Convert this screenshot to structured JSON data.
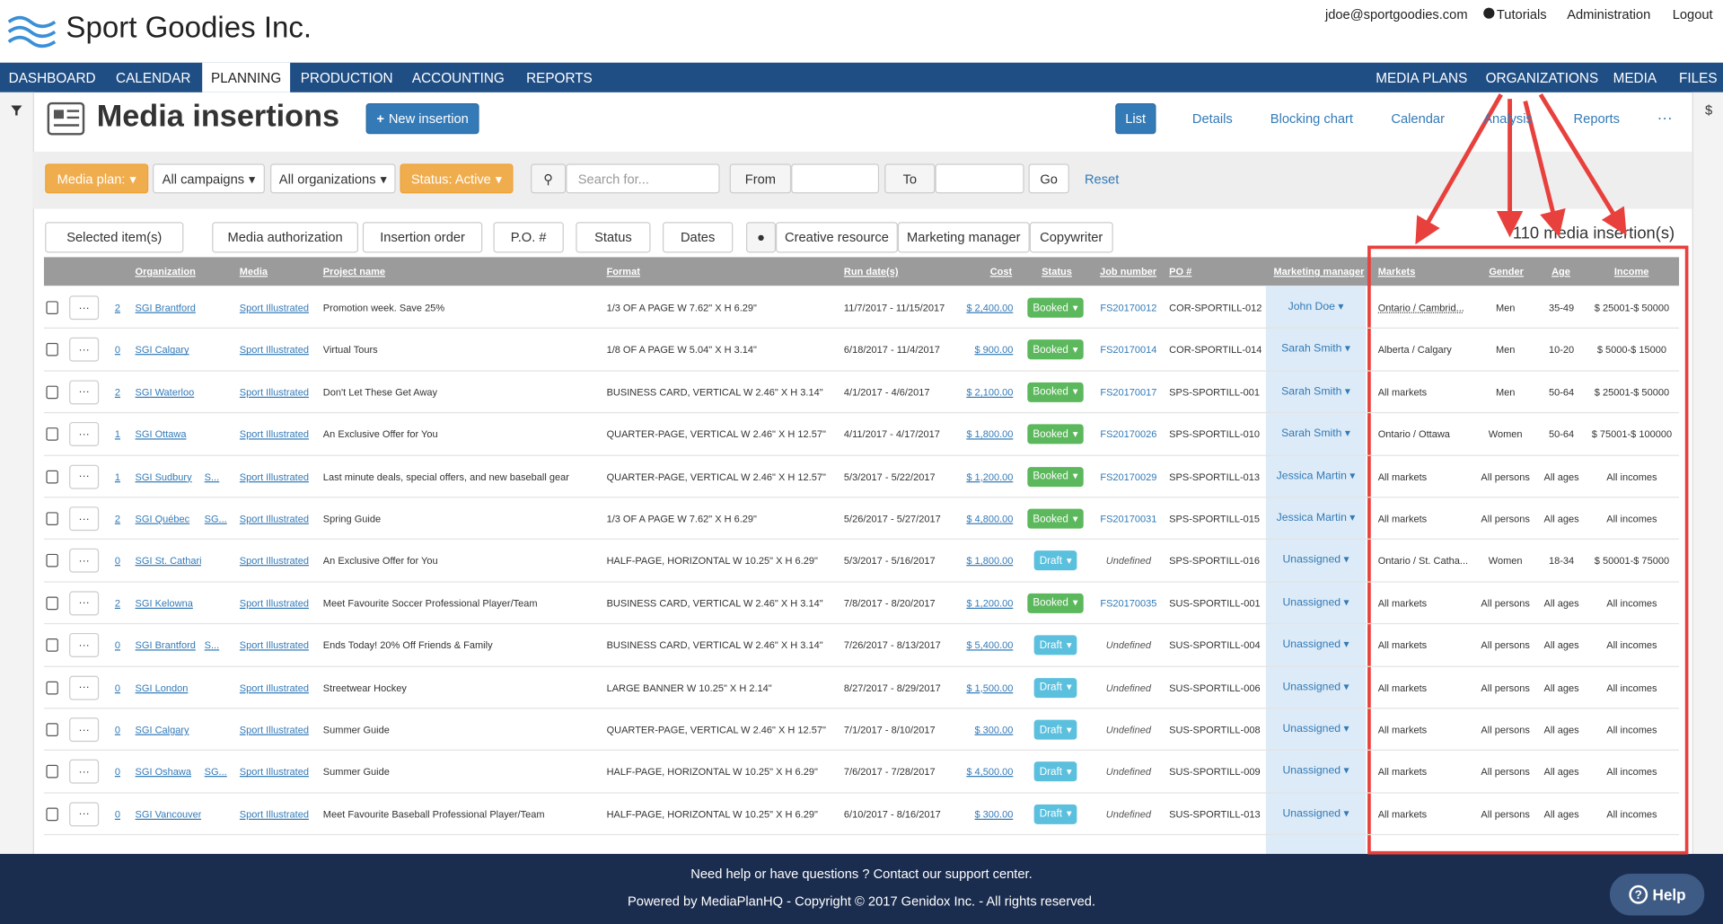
{
  "header": {
    "brand": "Sport Goodies Inc.",
    "links": [
      "jdoe@sportgoodies.com",
      "Tutorials",
      "Administration",
      "Logout"
    ]
  },
  "nav": {
    "left": [
      "DASHBOARD",
      "CALENDAR",
      "PLANNING",
      "PRODUCTION",
      "ACCOUNTING",
      "REPORTS"
    ],
    "active": 2,
    "right": [
      "MEDIA PLANS",
      "ORGANIZATIONS",
      "MEDIA",
      "FILES"
    ]
  },
  "toolbar": {
    "title": "Media insertions",
    "new_button": "New insertion",
    "views": [
      "List",
      "Details",
      "Blocking chart",
      "Calendar",
      "Analysis",
      "Reports"
    ],
    "active_view": 0
  },
  "filters": {
    "dropdowns": [
      "Media plan:",
      "All campaigns",
      "All organizations",
      "Status: Active"
    ],
    "search_placeholder": "Search for...",
    "from": "From",
    "to": "To",
    "go": "Go",
    "reset": "Reset"
  },
  "actions": {
    "buttons": [
      "Selected item(s)",
      "Media authorization",
      "Insertion order",
      "P.O. #",
      "Status",
      "Dates"
    ],
    "roles": [
      "Creative resource",
      "Marketing manager",
      "Copywriter"
    ],
    "count": "110 media insertion(s)"
  },
  "table": {
    "columns": [
      "Organization",
      "Media",
      "Project name",
      "Format",
      "Run date(s)",
      "Cost",
      "Status",
      "Job number",
      "PO #",
      "Marketing manager",
      "Markets",
      "Gender",
      "Age",
      "Income"
    ],
    "status_colors": {
      "Booked": "#5cb85c",
      "Draft": "#5bc0de"
    },
    "rows": [
      {
        "notes": 2,
        "organizations": [
          "SGI Brantford"
        ],
        "media": "Sport Illustrated",
        "project": "Promotion week. Save 25%",
        "format": "1/3 OF A PAGE W 7.62\" X H 6.29\"",
        "run_dates": "11/7/2017 - 11/15/2017",
        "cost": "$ 2,400.00",
        "status": "Booked",
        "job_number": "FS20170012",
        "po": "COR-SPORTILL-012",
        "manager": "John Doe",
        "markets": "Ontario / Cambrid...",
        "gender": "Men",
        "age": "35-49",
        "income": "$ 25001-$ 50000"
      },
      {
        "notes": 0,
        "organizations": [
          "SGI Calgary"
        ],
        "media": "Sport Illustrated",
        "project": "Virtual Tours",
        "format": "1/8 OF A PAGE W 5.04\" X H 3.14\"",
        "run_dates": "6/18/2017 - 11/4/2017",
        "cost": "$ 900.00",
        "status": "Booked",
        "job_number": "FS20170014",
        "po": "COR-SPORTILL-014",
        "manager": "Sarah Smith",
        "markets": "Alberta / Calgary",
        "gender": "Men",
        "age": "10-20",
        "income": "$ 5000-$ 15000"
      },
      {
        "notes": 2,
        "organizations": [
          "SGI Waterloo"
        ],
        "media": "Sport Illustrated",
        "project": "Don't Let These Get Away",
        "format": "BUSINESS CARD, VERTICAL W 2.46\" X H 3.14\"",
        "run_dates": "4/1/2017 - 4/6/2017",
        "cost": "$ 2,100.00",
        "status": "Booked",
        "job_number": "FS20170017",
        "po": "SPS-SPORTILL-001",
        "manager": "Sarah Smith",
        "markets": "All markets",
        "gender": "Men",
        "age": "50-64",
        "income": "$ 25001-$ 50000"
      },
      {
        "notes": 1,
        "organizations": [
          "SGI Ottawa"
        ],
        "media": "Sport Illustrated",
        "project": "An Exclusive Offer for You",
        "format": "QUARTER-PAGE, VERTICAL W 2.46\" X H 12.57\"",
        "run_dates": "4/11/2017 - 4/17/2017",
        "cost": "$ 1,800.00",
        "status": "Booked",
        "job_number": "FS20170026",
        "po": "SPS-SPORTILL-010",
        "manager": "Sarah Smith",
        "markets": "Ontario / Ottawa",
        "gender": "Women",
        "age": "50-64",
        "income": "$ 75001-$ 100000"
      },
      {
        "notes": 1,
        "organizations": [
          "SGI Sudbury",
          "S..."
        ],
        "media": "Sport Illustrated",
        "project": "Last minute deals, special offers, and new baseball gear",
        "format": "QUARTER-PAGE, VERTICAL W 2.46\" X H 12.57\"",
        "run_dates": "5/3/2017 - 5/22/2017",
        "cost": "$ 1,200.00",
        "status": "Booked",
        "job_number": "FS20170029",
        "po": "SPS-SPORTILL-013",
        "manager": "Jessica Martin",
        "markets": "All markets",
        "gender": "All persons",
        "age": "All ages",
        "income": "All incomes"
      },
      {
        "notes": 2,
        "organizations": [
          "SGI Québec",
          "SG..."
        ],
        "media": "Sport Illustrated",
        "project": "Spring Guide",
        "format": "1/3 OF A PAGE W 7.62\" X H 6.29\"",
        "run_dates": "5/26/2017 - 5/27/2017",
        "cost": "$ 4,800.00",
        "status": "Booked",
        "job_number": "FS20170031",
        "po": "SPS-SPORTILL-015",
        "manager": "Jessica Martin",
        "markets": "All markets",
        "gender": "All persons",
        "age": "All ages",
        "income": "All incomes"
      },
      {
        "notes": 0,
        "organizations": [
          "SGI St. Catharines"
        ],
        "media": "Sport Illustrated",
        "project": "An Exclusive Offer for You",
        "format": "HALF-PAGE, HORIZONTAL W 10.25\" X H 6.29\"",
        "run_dates": "5/3/2017 - 5/16/2017",
        "cost": "$ 1,800.00",
        "status": "Draft",
        "job_number": "Undefined",
        "po": "SPS-SPORTILL-016",
        "manager": "Unassigned",
        "markets": "Ontario / St. Catha...",
        "gender": "Women",
        "age": "18-34",
        "income": "$ 50001-$ 75000"
      },
      {
        "notes": 2,
        "organizations": [
          "SGI Kelowna"
        ],
        "media": "Sport Illustrated",
        "project": "Meet Favourite Soccer Professional Player/Team",
        "format": "BUSINESS CARD, VERTICAL W 2.46\" X H 3.14\"",
        "run_dates": "7/8/2017 - 8/20/2017",
        "cost": "$ 1,200.00",
        "status": "Booked",
        "job_number": "FS20170035",
        "po": "SUS-SPORTILL-001",
        "manager": "Unassigned",
        "markets": "All markets",
        "gender": "All persons",
        "age": "All ages",
        "income": "All incomes"
      },
      {
        "notes": 0,
        "organizations": [
          "SGI Brantford",
          "S..."
        ],
        "media": "Sport Illustrated",
        "project": "Ends Today! 20% Off Friends & Family",
        "format": "BUSINESS CARD, VERTICAL W 2.46\" X H 3.14\"",
        "run_dates": "7/26/2017 - 8/13/2017",
        "cost": "$ 5,400.00",
        "status": "Draft",
        "job_number": "Undefined",
        "po": "SUS-SPORTILL-004",
        "manager": "Unassigned",
        "markets": "All markets",
        "gender": "All persons",
        "age": "All ages",
        "income": "All incomes"
      },
      {
        "notes": 0,
        "organizations": [
          "SGI London"
        ],
        "media": "Sport Illustrated",
        "project": "Streetwear Hockey",
        "format": "LARGE BANNER W 10.25\" X H 2.14\"",
        "run_dates": "8/27/2017 - 8/29/2017",
        "cost": "$ 1,500.00",
        "status": "Draft",
        "job_number": "Undefined",
        "po": "SUS-SPORTILL-006",
        "manager": "Unassigned",
        "markets": "All markets",
        "gender": "All persons",
        "age": "All ages",
        "income": "All incomes"
      },
      {
        "notes": 0,
        "organizations": [
          "SGI Calgary"
        ],
        "media": "Sport Illustrated",
        "project": "Summer Guide",
        "format": "QUARTER-PAGE, VERTICAL W 2.46\" X H 12.57\"",
        "run_dates": "7/1/2017 - 8/10/2017",
        "cost": "$ 300.00",
        "status": "Draft",
        "job_number": "Undefined",
        "po": "SUS-SPORTILL-008",
        "manager": "Unassigned",
        "markets": "All markets",
        "gender": "All persons",
        "age": "All ages",
        "income": "All incomes"
      },
      {
        "notes": 0,
        "organizations": [
          "SGI Oshawa",
          "SG..."
        ],
        "media": "Sport Illustrated",
        "project": "Summer Guide",
        "format": "HALF-PAGE, HORIZONTAL W 10.25\" X H 6.29\"",
        "run_dates": "7/6/2017 - 7/28/2017",
        "cost": "$ 4,500.00",
        "status": "Draft",
        "job_number": "Undefined",
        "po": "SUS-SPORTILL-009",
        "manager": "Unassigned",
        "markets": "All markets",
        "gender": "All persons",
        "age": "All ages",
        "income": "All incomes"
      },
      {
        "notes": 0,
        "organizations": [
          "SGI Vancouver"
        ],
        "media": "Sport Illustrated",
        "project": "Meet Favourite Baseball Professional Player/Team",
        "format": "HALF-PAGE, HORIZONTAL W 10.25\" X H 6.29\"",
        "run_dates": "6/10/2017 - 8/16/2017",
        "cost": "$ 300.00",
        "status": "Draft",
        "job_number": "Undefined",
        "po": "SUS-SPORTILL-013",
        "manager": "Unassigned",
        "markets": "All markets",
        "gender": "All persons",
        "age": "All ages",
        "income": "All incomes"
      }
    ]
  },
  "footer": {
    "lines": [
      "Need help or have questions ? Contact our support center.",
      "Powered by MediaPlanHQ - Copyright © 2017 Genidox Inc. - All rights reserved."
    ],
    "help": "Help"
  }
}
